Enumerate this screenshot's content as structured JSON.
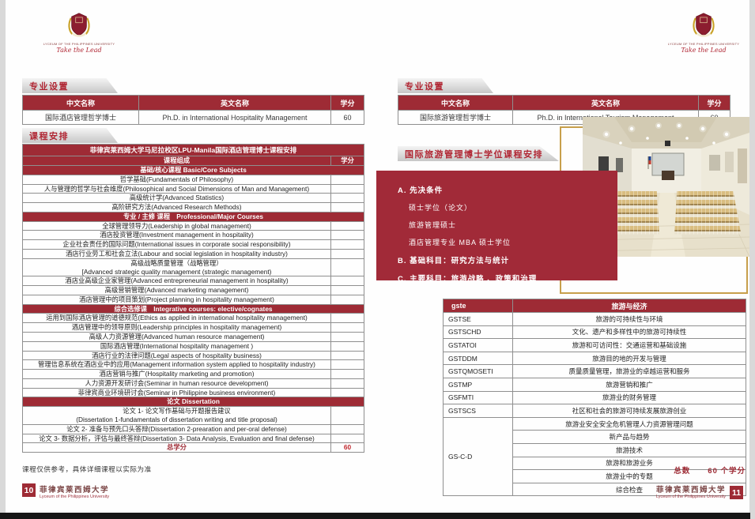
{
  "colors": {
    "accent_red": "#9e2b35",
    "box_red": "#a12a38",
    "gold": "#c79f4b",
    "tab_text_red": "#b02633"
  },
  "logo": {
    "en_name": "LYCEUM OF THE PHILIPPINES UNIVERSITY",
    "tagline": "Take the Lead"
  },
  "left_page": {
    "tab_program": "专业设置",
    "tab_courses": "课程安排",
    "program_table": {
      "headers": [
        "中文名称",
        "英文名称",
        "学分"
      ],
      "row": {
        "cn": "国际酒店管理哲学博士",
        "en": "Ph.D. in International Hospitality Management",
        "credits": "60"
      }
    },
    "course_table": {
      "title": "菲律宾莱西姆大学马尼拉校区LPU-Manila国际酒店管理博士课程安排",
      "col_course": "课程组成",
      "col_credits": "学分",
      "rows": [
        {
          "sec": true,
          "t": "基础/核心课程 Basic/Core Subjects"
        },
        {
          "t": "哲学基础(Fundamentals of Philosophy)"
        },
        {
          "t": "人与管理的哲学与社会维度(Philosophical and Social Dimensions of Man and Management)"
        },
        {
          "t": "高级统计学(Advanced Statistics)"
        },
        {
          "t": "高阶研究方法(Advanced Research Methods)"
        },
        {
          "sec": true,
          "t": "专业 / 主修 课程　Professional/Major Courses"
        },
        {
          "t": "全球管理领导力(Leadership in global management)"
        },
        {
          "t": "酒店投资管理(Investment management in hospitality)"
        },
        {
          "t": "企业社会责任的国际问题(International issues in corporate social responsibility)"
        },
        {
          "t": "酒店行业劳工和社会立法(Labour and social legislation in hospitality industry)"
        },
        {
          "t": "高级战略质量管理（战略管理）",
          "t2": "[Advanced strategic quality management (strategic management)"
        },
        {
          "t": "酒店业高级企业家管理(Advanced entrepreneurial management in hospitality)"
        },
        {
          "t": "高级营销管理(Advanced marketing management)"
        },
        {
          "t": "酒店管理中的项目策划(Project planning in hospitality management)"
        },
        {
          "sec": true,
          "t": "综合选修课　Integrative courses: elective/cognates"
        },
        {
          "t": "运用到国际酒店管理的道德规范(Ethics as applied in international hospitality management)"
        },
        {
          "t": "酒店管理中的领导原则(Leadership principles in hospitality management)"
        },
        {
          "t": "高级人力资源管理(Advanced human resource management)"
        },
        {
          "t": "国际酒店管理(International hospitality management )"
        },
        {
          "t": "酒店行业的法律问题(Legal aspects of hospitality business)"
        },
        {
          "t": "管理信息系统在酒店业中的应用(Management information system applied to hospitality industry)"
        },
        {
          "t": "酒店营销与推广(Hospitality marketing and promotion)"
        },
        {
          "t": "人力资源开发研讨会(Seminar in human resource development)"
        },
        {
          "t": "菲律宾商业环境研讨会(Seminar in Philippine business environment)"
        },
        {
          "sec": true,
          "t": "论文 Dissertation"
        },
        {
          "t": "论文 1- 论文写作基础与开题报告建议",
          "t2": "(Dissertation 1-fundamentals of dissertation writing and title proposal)"
        },
        {
          "t": "论文 2- 准备与预先口头答辩(Dissertation 2-prearation and per-oral defense)"
        },
        {
          "t": "论文 3- 数据分析，评估与最终答辩(Dissertation 3- Data Analysis, Evaluation and final defense)"
        }
      ],
      "total_label": "总学分",
      "total_value": "60"
    },
    "note": "课程仅供参考，具体详细课程以实际为准",
    "footer": {
      "page": "10",
      "cn": "菲律宾莱西姆大学",
      "en": "Lyceum of the Philippines University"
    }
  },
  "right_page": {
    "tab_program": "专业设置",
    "program_table": {
      "headers": [
        "中文名称",
        "英文名称",
        "学分"
      ],
      "row": {
        "cn": "国际旅游管理哲学博士",
        "en": "Ph.D. in International Tourism Management",
        "credits": "60"
      }
    },
    "tab_schedule": "国际旅游管理博士学位课程安排",
    "requirements": {
      "a_title": "A. 先决条件",
      "a_items": [
        "硕士学位（论文）",
        "旅游管理硕士",
        "酒店管理专业 MBA 硕士学位"
      ],
      "b_title": "B. 基础科目：研究方法与统计",
      "c_title": "C. 主要科目：旅游战略 、政策和治理"
    },
    "gste_table": {
      "col1": "gste",
      "col2": "旅游与经济",
      "rows": [
        [
          "GSTSE",
          "旅游的可持续性与环境"
        ],
        [
          "GSTSCHD",
          "文化、遗产和多样性中的旅游可持续性"
        ],
        [
          "GSTATOI",
          "旅游和可访问性：交通运营和基础设施"
        ],
        [
          "GSTDDM",
          "旅游目的地的开发与管理"
        ],
        [
          "GSTQMOSETI",
          "质量质量管理，旅游业的卓越运营和服务"
        ],
        [
          "GSTMP",
          "旅游营销和推广"
        ],
        [
          "GSFMTI",
          "旅游业的财务管理"
        ],
        [
          "GSTSCS",
          "社区和社会的旅游可持续发展旅游创业"
        ]
      ],
      "merged": {
        "code": "GS-C-D",
        "items": [
          "旅游业安全安全危机管理人力资源管理问题",
          "新产品与趋势",
          "旅游技术",
          "旅游和旅游业务",
          "旅游业中的专题",
          "综合检查"
        ]
      }
    },
    "total": {
      "label": "总数",
      "value": "60 个学分"
    },
    "footer": {
      "page": "11",
      "cn": "菲律宾莱西姆大学",
      "en": "Lyceum of the Philippines University"
    }
  }
}
